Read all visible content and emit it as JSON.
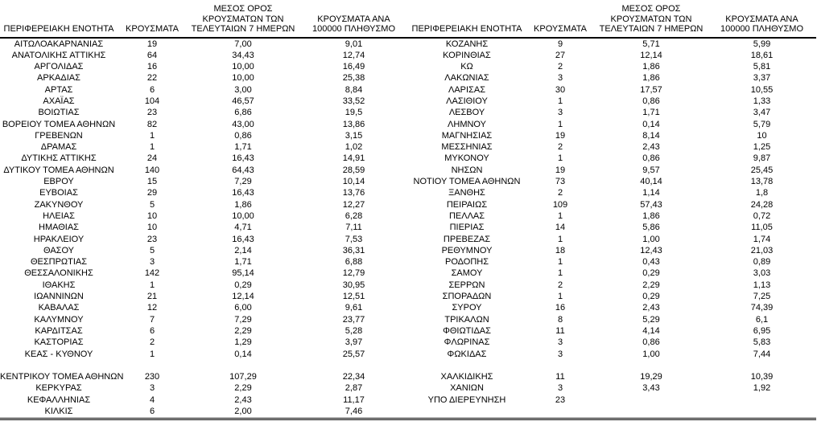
{
  "page": {
    "background_color": "#ffffff",
    "text_color": "#000000",
    "border_color": "#000000"
  },
  "table": {
    "headers": {
      "region": "ΠΕΡΙΦΕΡΕΙΑΚΗ ΕΝΟΤΗΤΑ",
      "cases": "ΚΡΟΥΣΜΑΤΑ",
      "avg7": "ΜΕΣΟΣ ΟΡΟΣ ΚΡΟΥΣΜΑΤΩΝ ΤΩΝ ΤΕΛΕΥΤΑΙΩΝ 7 ΗΜΕΡΩΝ",
      "per100k": "ΚΡΟΥΣΜΑΤΑ ΑΝΑ 100000 ΠΛΗΘΥΣΜΟ"
    },
    "left_rows": [
      {
        "region": "ΑΙΤΩΛΟΑΚΑΡΝΑΝΙΑΣ",
        "cases": "19",
        "avg7": "7,00",
        "per100k": "9,01"
      },
      {
        "region": "ΑΝΑΤΟΛΙΚΗΣ ΑΤΤΙΚΗΣ",
        "cases": "64",
        "avg7": "34,43",
        "per100k": "12,74"
      },
      {
        "region": "ΑΡΓΟΛΙΔΑΣ",
        "cases": "16",
        "avg7": "10,00",
        "per100k": "16,49"
      },
      {
        "region": "ΑΡΚΑΔΙΑΣ",
        "cases": "22",
        "avg7": "10,00",
        "per100k": "25,38"
      },
      {
        "region": "ΑΡΤΑΣ",
        "cases": "6",
        "avg7": "3,00",
        "per100k": "8,84"
      },
      {
        "region": "ΑΧΑΪΑΣ",
        "cases": "104",
        "avg7": "46,57",
        "per100k": "33,52"
      },
      {
        "region": "ΒΟΙΩΤΙΑΣ",
        "cases": "23",
        "avg7": "6,86",
        "per100k": "19,5"
      },
      {
        "region": "ΒΟΡΕΙΟΥ ΤΟΜΕΑ ΑΘΗΝΩΝ",
        "cases": "82",
        "avg7": "43,00",
        "per100k": "13,86"
      },
      {
        "region": "ΓΡΕΒΕΝΩΝ",
        "cases": "1",
        "avg7": "0,86",
        "per100k": "3,15"
      },
      {
        "region": "ΔΡΑΜΑΣ",
        "cases": "1",
        "avg7": "1,71",
        "per100k": "1,02"
      },
      {
        "region": "ΔΥΤΙΚΗΣ ΑΤΤΙΚΗΣ",
        "cases": "24",
        "avg7": "16,43",
        "per100k": "14,91"
      },
      {
        "region": "ΔΥΤΙΚΟΥ ΤΟΜΕΑ ΑΘΗΝΩΝ",
        "cases": "140",
        "avg7": "64,43",
        "per100k": "28,59"
      },
      {
        "region": "ΕΒΡΟΥ",
        "cases": "15",
        "avg7": "7,29",
        "per100k": "10,14"
      },
      {
        "region": "ΕΥΒΟΙΑΣ",
        "cases": "29",
        "avg7": "16,43",
        "per100k": "13,76"
      },
      {
        "region": "ΖΑΚΥΝΘΟΥ",
        "cases": "5",
        "avg7": "1,86",
        "per100k": "12,27"
      },
      {
        "region": "ΗΛΕΙΑΣ",
        "cases": "10",
        "avg7": "10,00",
        "per100k": "6,28"
      },
      {
        "region": "ΗΜΑΘΙΑΣ",
        "cases": "10",
        "avg7": "4,71",
        "per100k": "7,11"
      },
      {
        "region": "ΗΡΑΚΛΕΙΟΥ",
        "cases": "23",
        "avg7": "16,43",
        "per100k": "7,53"
      },
      {
        "region": "ΘΑΣΟΥ",
        "cases": "5",
        "avg7": "2,14",
        "per100k": "36,31"
      },
      {
        "region": "ΘΕΣΠΡΩΤΙΑΣ",
        "cases": "3",
        "avg7": "1,71",
        "per100k": "6,88"
      },
      {
        "region": "ΘΕΣΣΑΛΟΝΙΚΗΣ",
        "cases": "142",
        "avg7": "95,14",
        "per100k": "12,79"
      },
      {
        "region": "ΙΘΑΚΗΣ",
        "cases": "1",
        "avg7": "0,29",
        "per100k": "30,95"
      },
      {
        "region": "ΙΩΑΝΝΙΝΩΝ",
        "cases": "21",
        "avg7": "12,14",
        "per100k": "12,51"
      },
      {
        "region": "ΚΑΒΑΛΑΣ",
        "cases": "12",
        "avg7": "6,00",
        "per100k": "9,61"
      },
      {
        "region": "ΚΑΛΥΜΝΟΥ",
        "cases": "7",
        "avg7": "7,29",
        "per100k": "23,77"
      },
      {
        "region": "ΚΑΡΔΙΤΣΑΣ",
        "cases": "6",
        "avg7": "2,29",
        "per100k": "5,28"
      },
      {
        "region": "ΚΑΣΤΟΡΙΑΣ",
        "cases": "2",
        "avg7": "1,29",
        "per100k": "3,97"
      },
      {
        "region": "ΚΕΑΣ - ΚΥΘΝΟΥ",
        "cases": "1",
        "avg7": "0,14",
        "per100k": "25,57"
      },
      {
        "region": "",
        "cases": "",
        "avg7": "",
        "per100k": ""
      },
      {
        "region": "ΚΕΝΤΡΙΚΟΥ ΤΟΜΕΑ ΑΘΗΝΩΝ",
        "cases": "230",
        "avg7": "107,29",
        "per100k": "22,34"
      },
      {
        "region": "ΚΕΡΚΥΡΑΣ",
        "cases": "3",
        "avg7": "2,29",
        "per100k": "2,87"
      },
      {
        "region": "ΚΕΦΑΛΛΗΝΙΑΣ",
        "cases": "4",
        "avg7": "2,43",
        "per100k": "11,17"
      },
      {
        "region": "ΚΙΛΚΙΣ",
        "cases": "6",
        "avg7": "2,00",
        "per100k": "7,46"
      }
    ],
    "right_rows": [
      {
        "region": "ΚΟΖΑΝΗΣ",
        "cases": "9",
        "avg7": "5,71",
        "per100k": "5,99"
      },
      {
        "region": "ΚΟΡΙΝΘΙΑΣ",
        "cases": "27",
        "avg7": "12,14",
        "per100k": "18,61"
      },
      {
        "region": "ΚΩ",
        "cases": "2",
        "avg7": "1,86",
        "per100k": "5,81"
      },
      {
        "region": "ΛΑΚΩΝΙΑΣ",
        "cases": "3",
        "avg7": "1,86",
        "per100k": "3,37"
      },
      {
        "region": "ΛΑΡΙΣΑΣ",
        "cases": "30",
        "avg7": "17,57",
        "per100k": "10,55"
      },
      {
        "region": "ΛΑΣΙΘΙΟΥ",
        "cases": "1",
        "avg7": "0,86",
        "per100k": "1,33"
      },
      {
        "region": "ΛΕΣΒΟΥ",
        "cases": "3",
        "avg7": "1,71",
        "per100k": "3,47"
      },
      {
        "region": "ΛΗΜΝΟΥ",
        "cases": "1",
        "avg7": "0,14",
        "per100k": "5,79"
      },
      {
        "region": "ΜΑΓΝΗΣΙΑΣ",
        "cases": "19",
        "avg7": "8,14",
        "per100k": "10"
      },
      {
        "region": "ΜΕΣΣΗΝΙΑΣ",
        "cases": "2",
        "avg7": "2,43",
        "per100k": "1,25"
      },
      {
        "region": "ΜΥΚΟΝΟΥ",
        "cases": "1",
        "avg7": "0,86",
        "per100k": "9,87"
      },
      {
        "region": "ΝΗΣΩΝ",
        "cases": "19",
        "avg7": "9,57",
        "per100k": "25,45"
      },
      {
        "region": "ΝΟΤΙΟΥ ΤΟΜΕΑ ΑΘΗΝΩΝ",
        "cases": "73",
        "avg7": "40,14",
        "per100k": "13,78"
      },
      {
        "region": "ΞΑΝΘΗΣ",
        "cases": "2",
        "avg7": "1,14",
        "per100k": "1,8"
      },
      {
        "region": "ΠΕΙΡΑΙΩΣ",
        "cases": "109",
        "avg7": "57,43",
        "per100k": "24,28"
      },
      {
        "region": "ΠΕΛΛΑΣ",
        "cases": "1",
        "avg7": "1,86",
        "per100k": "0,72"
      },
      {
        "region": "ΠΙΕΡΙΑΣ",
        "cases": "14",
        "avg7": "5,86",
        "per100k": "11,05"
      },
      {
        "region": "ΠΡΕΒΕΖΑΣ",
        "cases": "1",
        "avg7": "1,00",
        "per100k": "1,74"
      },
      {
        "region": "ΡΕΘΥΜΝΟΥ",
        "cases": "18",
        "avg7": "12,43",
        "per100k": "21,03"
      },
      {
        "region": "ΡΟΔΟΠΗΣ",
        "cases": "1",
        "avg7": "0,43",
        "per100k": "0,89"
      },
      {
        "region": "ΣΑΜΟΥ",
        "cases": "1",
        "avg7": "0,29",
        "per100k": "3,03"
      },
      {
        "region": "ΣΕΡΡΩΝ",
        "cases": "2",
        "avg7": "2,29",
        "per100k": "1,13"
      },
      {
        "region": "ΣΠΟΡΑΔΩΝ",
        "cases": "1",
        "avg7": "0,29",
        "per100k": "7,25"
      },
      {
        "region": "ΣΥΡΟΥ",
        "cases": "16",
        "avg7": "2,43",
        "per100k": "74,39"
      },
      {
        "region": "ΤΡΙΚΑΛΩΝ",
        "cases": "8",
        "avg7": "5,29",
        "per100k": "6,1"
      },
      {
        "region": "ΦΘΙΩΤΙΔΑΣ",
        "cases": "11",
        "avg7": "4,14",
        "per100k": "6,95"
      },
      {
        "region": "ΦΛΩΡΙΝΑΣ",
        "cases": "3",
        "avg7": "0,86",
        "per100k": "5,83"
      },
      {
        "region": "ΦΩΚΙΔΑΣ",
        "cases": "3",
        "avg7": "1,00",
        "per100k": "7,44"
      },
      {
        "region": "",
        "cases": "",
        "avg7": "",
        "per100k": ""
      },
      {
        "region": "ΧΑΛΚΙΔΙΚΗΣ",
        "cases": "11",
        "avg7": "19,29",
        "per100k": "10,39"
      },
      {
        "region": "ΧΑΝΙΩΝ",
        "cases": "3",
        "avg7": "3,43",
        "per100k": "1,92"
      },
      {
        "region": "ΥΠΟ ΔΙΕΡΕΥΝΗΣΗ",
        "cases": "23",
        "avg7": "",
        "per100k": ""
      },
      {
        "region": "",
        "cases": "",
        "avg7": "",
        "per100k": ""
      }
    ]
  }
}
